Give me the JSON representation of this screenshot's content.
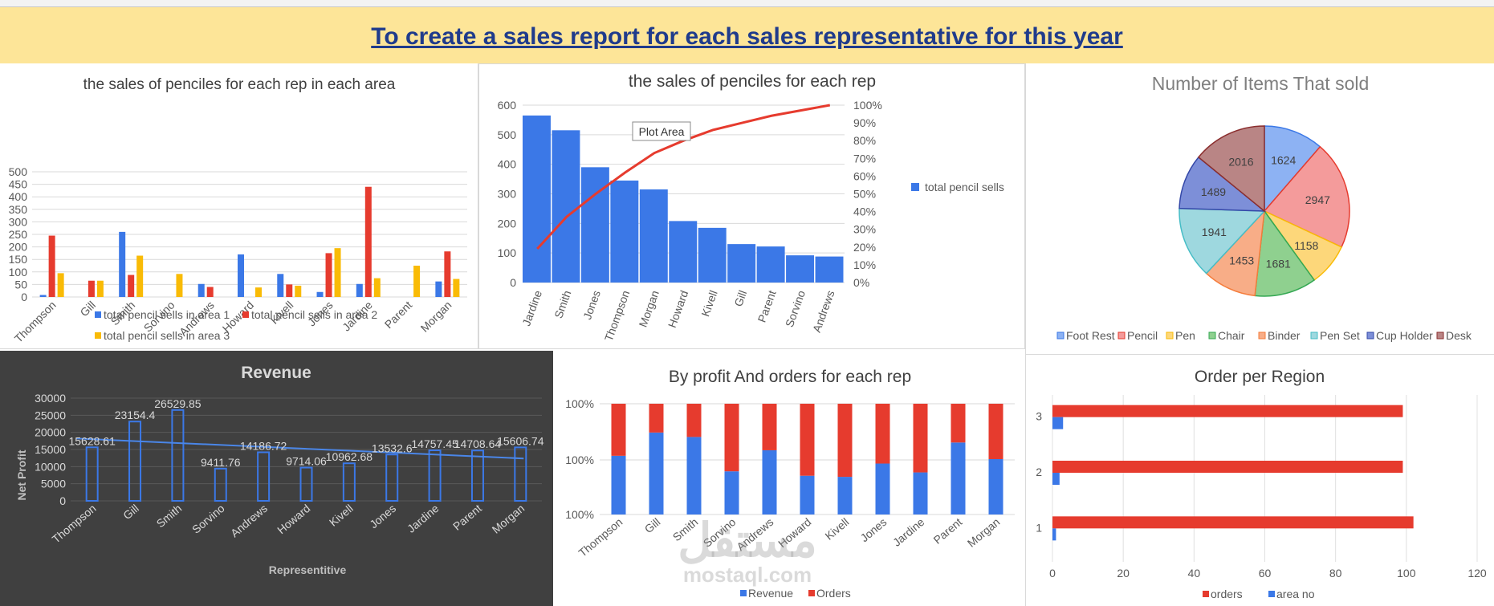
{
  "banner": {
    "title": "To create a sales report for each sales representative for this year"
  },
  "charts": {
    "area": {
      "title": "the sales of penciles for each rep in each area",
      "reps": [
        "Thompson",
        "Gill",
        "Smith",
        "Sorvino",
        "Andrews",
        "Howard",
        "Kivell",
        "Jones",
        "Jardine",
        "Parent",
        "Morgan"
      ],
      "ticks": [
        "0",
        "50",
        "100",
        "150",
        "200",
        "250",
        "300",
        "350",
        "400",
        "450",
        "500"
      ],
      "legend": [
        "total pencil sells in area 1",
        "total pencil sells in area 2",
        "total pencil sells in area 3"
      ]
    },
    "pareto": {
      "title": "the sales of penciles for each rep",
      "reps": [
        "Jardine",
        "Smith",
        "Jones",
        "Thompson",
        "Morgan",
        "Howard",
        "Kivell",
        "Gill",
        "Parent",
        "Sorvino",
        "Andrews"
      ],
      "left_ticks": [
        "0",
        "100",
        "200",
        "300",
        "400",
        "500",
        "600"
      ],
      "right_ticks": [
        "0%",
        "10%",
        "20%",
        "30%",
        "40%",
        "50%",
        "60%",
        "70%",
        "80%",
        "90%",
        "100%"
      ],
      "legend": "total pencil sells",
      "tooltip": "Plot Area"
    },
    "pie": {
      "title": "Number of Items That sold",
      "labels": [
        "1624",
        "2947",
        "1158",
        "1681",
        "1453",
        "1941",
        "1489",
        "2016"
      ],
      "legend": [
        "Foot Rest",
        "Pencil",
        "Pen",
        "Chair",
        "Binder",
        "Pen Set",
        "Cup Holder",
        "Desk"
      ]
    },
    "revenue": {
      "title": "Revenue",
      "reps": [
        "Thompson",
        "Gill",
        "Smith",
        "Sorvino",
        "Andrews",
        "Howard",
        "Kivell",
        "Jones",
        "Jardine",
        "Parent",
        "Morgan"
      ],
      "labels": [
        "15628.61",
        "23154.4",
        "26529.85",
        "9411.76",
        "14186.72",
        "9714.06",
        "10962.68",
        "13532.6",
        "14757.45",
        "14708.64",
        "15606.74"
      ],
      "ticks": [
        "0",
        "5000",
        "10000",
        "15000",
        "20000",
        "25000",
        "30000"
      ],
      "ylabel": "Net Profit",
      "xlabel": "Representitive"
    },
    "profit": {
      "title": "By profit And orders  for each rep",
      "reps": [
        "Thompson",
        "Gill",
        "Smith",
        "Sorvino",
        "Andrews",
        "Howard",
        "Kivell",
        "Jones",
        "Jardine",
        "Parent",
        "Morgan"
      ],
      "ticks": [
        "100%",
        "100%",
        "100%"
      ],
      "legend": [
        "Revenue",
        "Orders"
      ]
    },
    "region": {
      "title": "Order per Region",
      "categories": [
        "1",
        "2",
        "3"
      ],
      "ticks": [
        "0",
        "20",
        "40",
        "60",
        "80",
        "100",
        "120"
      ],
      "legend": [
        "orders",
        "area no"
      ]
    }
  },
  "chart_data": [
    {
      "type": "bar",
      "title": "the sales of penciles for each rep in each area",
      "categories": [
        "Thompson",
        "Gill",
        "Smith",
        "Sorvino",
        "Andrews",
        "Howard",
        "Kivell",
        "Jones",
        "Jardine",
        "Parent",
        "Morgan"
      ],
      "series": [
        {
          "name": "total pencil sells in area 1",
          "values": [
            8,
            0,
            260,
            0,
            52,
            170,
            92,
            20,
            52,
            0,
            62
          ]
        },
        {
          "name": "total pencil sells in area 2",
          "values": [
            245,
            65,
            88,
            0,
            40,
            0,
            50,
            175,
            440,
            0,
            182
          ]
        },
        {
          "name": "total pencil sells in area 3",
          "values": [
            95,
            65,
            165,
            92,
            0,
            38,
            45,
            195,
            75,
            125,
            72
          ]
        }
      ],
      "ylim": [
        0,
        500
      ],
      "grid": true,
      "legend": "bottom",
      "colors": [
        "#3b78e7",
        "#e63b2e",
        "#f9bb06"
      ]
    },
    {
      "type": "bar",
      "title": "the sales of penciles for each rep",
      "categories": [
        "Jardine",
        "Smith",
        "Jones",
        "Thompson",
        "Morgan",
        "Howard",
        "Kivell",
        "Gill",
        "Parent",
        "Sorvino",
        "Andrews"
      ],
      "series": [
        {
          "name": "total pencil sells",
          "values": [
            565,
            515,
            390,
            345,
            315,
            208,
            185,
            130,
            122,
            92,
            88
          ]
        }
      ],
      "cumulative_percent": [
        19,
        37,
        50,
        62,
        73,
        80,
        86,
        90,
        94,
        97,
        100
      ],
      "ylim": [
        0,
        600
      ],
      "y2lim": [
        0,
        100
      ],
      "legend": "right",
      "colors": [
        "#3b78e7",
        "#e63b2e"
      ]
    },
    {
      "type": "pie",
      "title": "Number of Items That sold",
      "categories": [
        "Foot Rest",
        "Pencil",
        "Pen",
        "Chair",
        "Binder",
        "Pen Set",
        "Cup Holder",
        "Desk"
      ],
      "values": [
        1624,
        2947,
        1158,
        1681,
        1453,
        1941,
        1489,
        2016
      ],
      "legend": "bottom",
      "colors": [
        "#8db2f3",
        "#f49b9b",
        "#fdd77a",
        "#8fd08f",
        "#f8ad87",
        "#9ed8df",
        "#7d8fd8",
        "#b98585"
      ]
    },
    {
      "type": "bar",
      "title": "Revenue",
      "categories": [
        "Thompson",
        "Gill",
        "Smith",
        "Sorvino",
        "Andrews",
        "Howard",
        "Kivell",
        "Jones",
        "Jardine",
        "Parent",
        "Morgan"
      ],
      "values": [
        15628.61,
        23154.4,
        26529.85,
        9411.76,
        14186.72,
        9714.06,
        10962.68,
        13532.6,
        14757.45,
        14708.64,
        15606.74
      ],
      "trendline": true,
      "ylim": [
        0,
        30000
      ],
      "xlabel": "Representitive",
      "ylabel": "Net Profit",
      "background": "#404040",
      "colors": [
        "#3b78e7"
      ]
    },
    {
      "type": "bar",
      "stacked": "percent",
      "title": "By profit And orders  for each rep",
      "categories": [
        "Thompson",
        "Gill",
        "Smith",
        "Sorvino",
        "Andrews",
        "Howard",
        "Kivell",
        "Jones",
        "Jardine",
        "Parent",
        "Morgan"
      ],
      "series": [
        {
          "name": "Revenue",
          "values": [
            53,
            74,
            70,
            39,
            58,
            35,
            34,
            46,
            38,
            65,
            50
          ]
        },
        {
          "name": "Orders",
          "values": [
            47,
            26,
            30,
            61,
            42,
            65,
            66,
            54,
            62,
            35,
            50
          ]
        }
      ],
      "legend": "bottom",
      "colors": [
        "#3b78e7",
        "#e63b2e"
      ]
    },
    {
      "type": "bar",
      "orientation": "horizontal",
      "title": "Order per Region",
      "categories": [
        "1",
        "2",
        "3"
      ],
      "series": [
        {
          "name": "orders",
          "values": [
            102,
            99,
            99
          ]
        },
        {
          "name": "area no",
          "values": [
            1,
            2,
            3
          ]
        }
      ],
      "xlim": [
        0,
        120
      ],
      "legend": "bottom",
      "colors": [
        "#e63b2e",
        "#3b78e7"
      ]
    }
  ]
}
